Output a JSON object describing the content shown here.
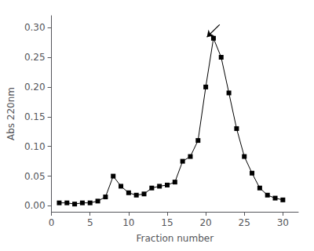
{
  "chart_data": {
    "type": "line",
    "x": [
      1,
      2,
      3,
      4,
      5,
      6,
      7,
      8,
      9,
      10,
      11,
      12,
      13,
      14,
      15,
      16,
      17,
      18,
      19,
      20,
      21,
      22,
      23,
      24,
      25,
      26,
      27,
      28,
      29,
      30
    ],
    "values": [
      0.005,
      0.005,
      0.003,
      0.005,
      0.005,
      0.008,
      0.015,
      0.05,
      0.033,
      0.022,
      0.018,
      0.02,
      0.03,
      0.033,
      0.035,
      0.04,
      0.075,
      0.083,
      0.11,
      0.2,
      0.282,
      0.25,
      0.19,
      0.13,
      0.083,
      0.055,
      0.03,
      0.018,
      0.013,
      0.01
    ],
    "xlabel": "Fraction number",
    "ylabel": "Abs 220nm",
    "xlim": [
      0,
      32
    ],
    "ylim": [
      -0.01,
      0.32
    ],
    "xticks": [
      0,
      5,
      10,
      15,
      20,
      25,
      30
    ],
    "yticks": [
      {
        "value": 0,
        "label": "0.00"
      },
      0.05,
      {
        "value": 0.1,
        "label": "0.10"
      },
      0.15,
      {
        "value": 0.2,
        "label": "0.20"
      },
      0.25,
      {
        "value": 0.3,
        "label": "0.30"
      }
    ],
    "color": "black",
    "marker": "square",
    "line_style": "solid",
    "grid": false,
    "annotations": [
      {
        "from": [
          21.8,
          0.305
        ],
        "to": [
          20.15,
          0.284
        ],
        "color": "black"
      }
    ]
  }
}
